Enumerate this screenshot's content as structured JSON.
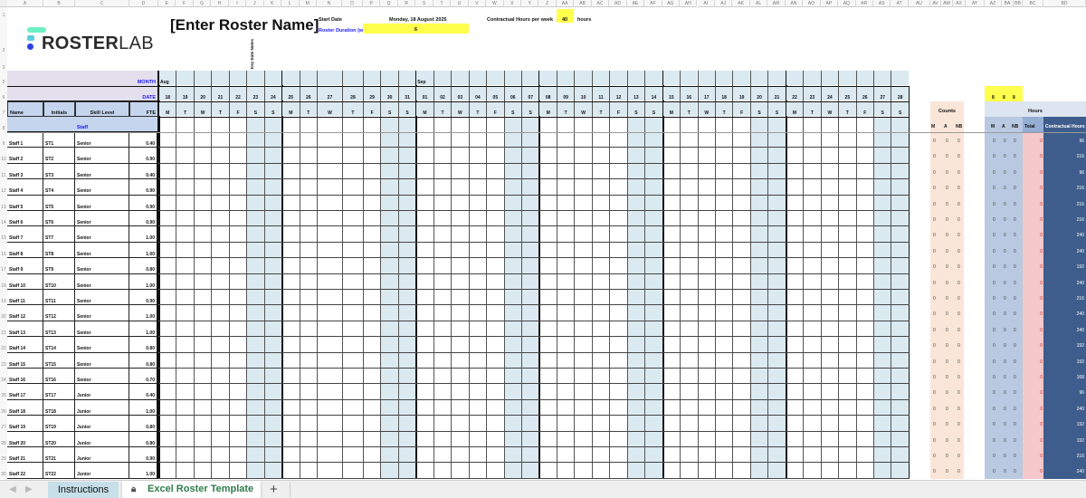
{
  "logo": {
    "text_bold": "ROSTER",
    "text_light": "LAB",
    "colors": [
      "#6ef0c4",
      "#5bcbe0",
      "#2b3fe0"
    ]
  },
  "header": {
    "title": "[Enter Roster Name]",
    "start_date_label": "Start Date",
    "start_date_value": "Monday, 18 August 2025",
    "duration_label": "Roster Duration (we",
    "duration_value": "6",
    "contract_label": "Contractual Hours per week",
    "contract_value": "40",
    "contract_unit": "hours",
    "key_date_notes": "Key Date Notes"
  },
  "columns": [
    "A",
    "B",
    "C",
    "D",
    "E",
    "F",
    "G",
    "H",
    "I",
    "J",
    "K",
    "L",
    "M",
    "N",
    "O",
    "P",
    "Q",
    "R",
    "S",
    "T",
    "U",
    "V",
    "W",
    "X",
    "Y",
    "Z",
    "AA",
    "AB",
    "AC",
    "AD",
    "AE",
    "AF",
    "AG",
    "AH",
    "AI",
    "AJ",
    "AK",
    "AL",
    "AM",
    "AN",
    "AO",
    "AP",
    "AQ",
    "AR",
    "AS",
    "AT",
    "AU",
    "AV",
    "AW",
    "AX",
    "AY",
    "AZ",
    "BA",
    "BB",
    "BC",
    "BD"
  ],
  "row_numbers": [
    "1",
    "2",
    "3",
    "5",
    "6",
    "7",
    "8",
    "9",
    "10",
    "11",
    "12",
    "13",
    "14",
    "15",
    "16",
    "17",
    "18",
    "19",
    "20",
    "21",
    "22",
    "23",
    "24",
    "25",
    "26",
    "27",
    "28",
    "29",
    "30"
  ],
  "left_headers": {
    "month": "MONTH",
    "date": "DATE",
    "name": "Name",
    "initials": "Initials",
    "skill": "Skill Level",
    "fte": "FTE",
    "staff": "Staff"
  },
  "months": [
    "Aug",
    "",
    "",
    "",
    "",
    "",
    "",
    "",
    "",
    "",
    "",
    "",
    "",
    "",
    "Sep",
    "",
    "",
    "",
    "",
    "",
    "",
    "",
    "",
    "",
    "",
    "",
    "",
    "",
    "",
    "",
    "",
    "",
    "",
    "",
    "",
    "",
    "",
    "",
    "",
    "",
    "",
    ""
  ],
  "dates": [
    "18",
    "19",
    "20",
    "21",
    "22",
    "23",
    "24",
    "25",
    "26",
    "27",
    "28",
    "29",
    "30",
    "31",
    "01",
    "02",
    "03",
    "04",
    "05",
    "06",
    "07",
    "08",
    "09",
    "10",
    "11",
    "12",
    "13",
    "14",
    "15",
    "16",
    "17",
    "18",
    "19",
    "20",
    "21",
    "22",
    "23",
    "24",
    "25",
    "26",
    "27",
    "28"
  ],
  "days": [
    "M",
    "T",
    "W",
    "T",
    "F",
    "S",
    "S",
    "M",
    "T",
    "W",
    "T",
    "F",
    "S",
    "S",
    "M",
    "T",
    "W",
    "T",
    "F",
    "S",
    "S",
    "M",
    "T",
    "W",
    "T",
    "F",
    "S",
    "S",
    "M",
    "T",
    "W",
    "T",
    "F",
    "S",
    "S",
    "M",
    "T",
    "W",
    "T",
    "F",
    "S",
    "S"
  ],
  "staff": [
    {
      "name": "Staff 1",
      "initials": "ST1",
      "skill": "Senior",
      "fte": "0.40",
      "counts": [
        "0",
        "0",
        "0"
      ],
      "hours": [
        "0",
        "0",
        "0"
      ],
      "total": "0",
      "contract": "96"
    },
    {
      "name": "Staff 2",
      "initials": "ST2",
      "skill": "Senior",
      "fte": "0.90",
      "counts": [
        "0",
        "0",
        "0"
      ],
      "hours": [
        "0",
        "0",
        "0"
      ],
      "total": "0",
      "contract": "216"
    },
    {
      "name": "Staff 3",
      "initials": "ST3",
      "skill": "Senior",
      "fte": "0.40",
      "counts": [
        "0",
        "0",
        "0"
      ],
      "hours": [
        "0",
        "0",
        "0"
      ],
      "total": "0",
      "contract": "96"
    },
    {
      "name": "Staff 4",
      "initials": "ST4",
      "skill": "Senior",
      "fte": "0.90",
      "counts": [
        "0",
        "0",
        "0"
      ],
      "hours": [
        "0",
        "0",
        "0"
      ],
      "total": "0",
      "contract": "216"
    },
    {
      "name": "Staff 5",
      "initials": "ST5",
      "skill": "Senior",
      "fte": "0.90",
      "counts": [
        "0",
        "0",
        "0"
      ],
      "hours": [
        "0",
        "0",
        "0"
      ],
      "total": "0",
      "contract": "216"
    },
    {
      "name": "Staff 6",
      "initials": "ST6",
      "skill": "Senior",
      "fte": "0.90",
      "counts": [
        "0",
        "0",
        "0"
      ],
      "hours": [
        "0",
        "0",
        "0"
      ],
      "total": "0",
      "contract": "216"
    },
    {
      "name": "Staff 7",
      "initials": "ST7",
      "skill": "Senior",
      "fte": "1.00",
      "counts": [
        "0",
        "0",
        "0"
      ],
      "hours": [
        "0",
        "0",
        "0"
      ],
      "total": "0",
      "contract": "240"
    },
    {
      "name": "Staff 8",
      "initials": "ST8",
      "skill": "Senior",
      "fte": "1.00",
      "counts": [
        "0",
        "0",
        "0"
      ],
      "hours": [
        "0",
        "0",
        "0"
      ],
      "total": "0",
      "contract": "240"
    },
    {
      "name": "Staff 9",
      "initials": "ST9",
      "skill": "Senior",
      "fte": "0.80",
      "counts": [
        "0",
        "0",
        "0"
      ],
      "hours": [
        "0",
        "0",
        "0"
      ],
      "total": "0",
      "contract": "192"
    },
    {
      "name": "Staff 10",
      "initials": "ST10",
      "skill": "Senior",
      "fte": "1.00",
      "counts": [
        "0",
        "0",
        "0"
      ],
      "hours": [
        "0",
        "0",
        "0"
      ],
      "total": "0",
      "contract": "240"
    },
    {
      "name": "Staff 11",
      "initials": "ST11",
      "skill": "Senior",
      "fte": "0.90",
      "counts": [
        "0",
        "0",
        "0"
      ],
      "hours": [
        "0",
        "0",
        "0"
      ],
      "total": "0",
      "contract": "216"
    },
    {
      "name": "Staff 12",
      "initials": "ST12",
      "skill": "Senior",
      "fte": "1.00",
      "counts": [
        "0",
        "0",
        "0"
      ],
      "hours": [
        "0",
        "0",
        "0"
      ],
      "total": "0",
      "contract": "240"
    },
    {
      "name": "Staff 13",
      "initials": "ST13",
      "skill": "Senior",
      "fte": "1.00",
      "counts": [
        "0",
        "0",
        "0"
      ],
      "hours": [
        "0",
        "0",
        "0"
      ],
      "total": "0",
      "contract": "240"
    },
    {
      "name": "Staff 14",
      "initials": "ST14",
      "skill": "Senior",
      "fte": "0.80",
      "counts": [
        "0",
        "0",
        "0"
      ],
      "hours": [
        "0",
        "0",
        "0"
      ],
      "total": "0",
      "contract": "192"
    },
    {
      "name": "Staff 15",
      "initials": "ST15",
      "skill": "Senior",
      "fte": "0.80",
      "counts": [
        "0",
        "0",
        "0"
      ],
      "hours": [
        "0",
        "0",
        "0"
      ],
      "total": "0",
      "contract": "192"
    },
    {
      "name": "Staff 16",
      "initials": "ST16",
      "skill": "Senior",
      "fte": "0.70",
      "counts": [
        "0",
        "0",
        "0"
      ],
      "hours": [
        "0",
        "0",
        "0"
      ],
      "total": "0",
      "contract": "168"
    },
    {
      "name": "Staff 17",
      "initials": "ST17",
      "skill": "Junior",
      "fte": "0.40",
      "counts": [
        "0",
        "0",
        "0"
      ],
      "hours": [
        "0",
        "0",
        "0"
      ],
      "total": "0",
      "contract": "96"
    },
    {
      "name": "Staff 18",
      "initials": "ST18",
      "skill": "Junior",
      "fte": "1.00",
      "counts": [
        "0",
        "0",
        "0"
      ],
      "hours": [
        "0",
        "0",
        "0"
      ],
      "total": "0",
      "contract": "240"
    },
    {
      "name": "Staff 19",
      "initials": "ST19",
      "skill": "Junior",
      "fte": "0.80",
      "counts": [
        "0",
        "0",
        "0"
      ],
      "hours": [
        "0",
        "0",
        "0"
      ],
      "total": "0",
      "contract": "192"
    },
    {
      "name": "Staff 20",
      "initials": "ST20",
      "skill": "Junior",
      "fte": "0.80",
      "counts": [
        "0",
        "0",
        "0"
      ],
      "hours": [
        "0",
        "0",
        "0"
      ],
      "total": "0",
      "contract": "192"
    },
    {
      "name": "Staff 21",
      "initials": "ST21",
      "skill": "Junior",
      "fte": "0.90",
      "counts": [
        "0",
        "0",
        "0"
      ],
      "hours": [
        "0",
        "0",
        "0"
      ],
      "total": "0",
      "contract": "216"
    },
    {
      "name": "Staff 22",
      "initials": "ST22",
      "skill": "Junior",
      "fte": "1.00",
      "counts": [
        "0",
        "0",
        "0"
      ],
      "hours": [
        "0",
        "0",
        "0"
      ],
      "total": "0",
      "contract": "240"
    }
  ],
  "summary": {
    "counts_title": "Counts",
    "hours_title": "Hours",
    "shift_headers": [
      "M",
      "A",
      "NB"
    ],
    "shift_hours": [
      "8",
      "8",
      "8"
    ],
    "total_label": "Total",
    "contract_label": "Contractual Hours"
  },
  "tabs": {
    "items": [
      {
        "label": "Instructions",
        "active": false
      },
      {
        "label": "Excel Roster Template",
        "active": true,
        "locked": true
      }
    ],
    "add": "+"
  },
  "colors": {
    "date_header": "#dbe9f0",
    "weekend": "#dbe9f0",
    "left_header": "#e4dfec",
    "col_header": "#c5d5ee",
    "yellow": "#ffff4d",
    "counts_bg": "#f9e6d8",
    "hours_bg": "#b9c9e1",
    "total_bg": "#f5c8cc",
    "contract_bg": "#3e5d8c",
    "active_tab_text": "#2e7d4a",
    "label_blue": "#1a1aff"
  }
}
